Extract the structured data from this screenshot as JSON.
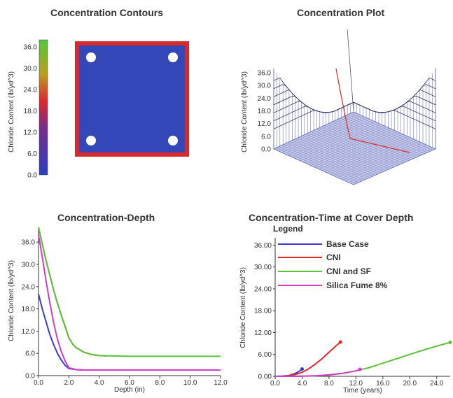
{
  "titles": {
    "contours": "Concentration Contours",
    "plot": "Concentration Plot",
    "depth": "Concentration-Depth",
    "time": "Concentration-Time at Cover Depth"
  },
  "colors": {
    "base_case": "#3a3ad0",
    "cni": "#e02828",
    "cni_sf": "#5cc23a",
    "silica_fume": "#d23ac8",
    "slab_fill": "#3447b8",
    "slab_border": "#d82a2a"
  },
  "chart_data": [
    {
      "type": "heatmap",
      "title": "Concentration Contours",
      "ylabel": "Chloride Content (lb/yd^3)",
      "colorbar": {
        "ticks": [
          "36.0",
          "30.0",
          "24.0",
          "18.0",
          "12.0",
          "6.0",
          "0.0"
        ],
        "range": [
          0,
          38
        ]
      }
    },
    {
      "type": "area",
      "title": "Concentration Plot",
      "ylabel": "Chloride Content (lb/yd^3)",
      "zticks": [
        "36.0",
        "30.0",
        "24.0",
        "18.0",
        "12.0",
        "6.0",
        "0.0"
      ],
      "zlim": [
        0,
        38
      ]
    },
    {
      "type": "line",
      "title": "Concentration-Depth",
      "xlabel": "Depth (in)",
      "ylabel": "Chloride Content (lb/yd^3)",
      "xlim": [
        0,
        12
      ],
      "ylim": [
        0,
        40
      ],
      "xticks": [
        "0.0",
        "2.0",
        "4.0",
        "6.0",
        "8.0",
        "10.0",
        "12.0"
      ],
      "yticks": [
        "0.0",
        "6.0",
        "12.0",
        "18.0",
        "24.0",
        "30.0",
        "36.0"
      ],
      "series": [
        {
          "key": "base_case",
          "x": [
            0,
            0.25,
            0.5,
            0.75,
            1.0,
            1.25,
            1.5,
            1.75,
            2.0,
            2.5,
            3.0,
            4.0,
            6.0,
            8.0,
            10.0,
            12.0
          ],
          "y": [
            22,
            18,
            14.5,
            11,
            8.3,
            6,
            4.2,
            2.8,
            1.9,
            1.6,
            1.5,
            1.5,
            1.5,
            1.5,
            1.5,
            1.5
          ]
        },
        {
          "key": "cni",
          "x": [
            0,
            0.25,
            0.5,
            0.75,
            1.0,
            1.25,
            1.5,
            1.75,
            2.0,
            2.25,
            2.5,
            3.0,
            3.5,
            4.0,
            4.5
          ],
          "y": [
            40,
            35.5,
            31,
            27,
            23,
            19.5,
            16.3,
            13.3,
            10.2,
            8.5,
            7.5,
            6.3,
            5.7,
            5.4,
            5.3
          ]
        },
        {
          "key": "cni_sf",
          "x": [
            0,
            0.25,
            0.5,
            0.75,
            1.0,
            1.25,
            1.5,
            1.75,
            2.0,
            2.25,
            2.5,
            3.0,
            3.5,
            4.0,
            5.0,
            6.0,
            8.0,
            10.0,
            12.0
          ],
          "y": [
            40,
            35.5,
            31,
            27,
            23,
            19.5,
            16.3,
            13.3,
            10.2,
            8.5,
            7.5,
            6.3,
            5.7,
            5.4,
            5.3,
            5.2,
            5.2,
            5.2,
            5.2
          ]
        },
        {
          "key": "silica_fume",
          "x": [
            0,
            0.25,
            0.5,
            0.75,
            1.0,
            1.25,
            1.5,
            1.75,
            2.0,
            2.5,
            3.0,
            4.0,
            6.0,
            8.0,
            10.0,
            12.0
          ],
          "y": [
            38,
            32,
            25.5,
            19.5,
            14.2,
            9.8,
            6.5,
            4.0,
            2.1,
            1.6,
            1.5,
            1.5,
            1.5,
            1.5,
            1.5,
            1.5
          ]
        }
      ]
    },
    {
      "type": "line",
      "title": "Concentration-Time at Cover Depth",
      "xlabel": "Time (years)",
      "ylabel": "Chloride Content (lb/yd^3)",
      "xlim": [
        0,
        26
      ],
      "ylim": [
        0,
        38
      ],
      "xticks": [
        "0.0",
        "4.0",
        "8.0",
        "12.0",
        "16.0",
        "20.0",
        "24.0"
      ],
      "yticks": [
        "0.00",
        "6.00",
        "12.00",
        "18.00",
        "24.00",
        "30.00",
        "36.00"
      ],
      "legend_title": "Legend",
      "legend": [
        "Base Case",
        "CNI",
        "CNI and SF",
        "Silica Fume  8%"
      ],
      "series": [
        {
          "key": "base_case",
          "x": [
            0,
            1,
            2,
            3,
            3.6,
            4.0
          ],
          "y": [
            0,
            0.05,
            0.2,
            0.8,
            1.4,
            2.0
          ]
        },
        {
          "key": "cni",
          "x": [
            0,
            1,
            2,
            3,
            4,
            5,
            6,
            7,
            8,
            9,
            9.7
          ],
          "y": [
            0,
            0.05,
            0.2,
            0.5,
            1.1,
            2.1,
            3.4,
            4.9,
            6.6,
            8.3,
            9.4
          ]
        },
        {
          "key": "cni_sf",
          "x": [
            0,
            2,
            4,
            6,
            8,
            10,
            12,
            14,
            16,
            18,
            20,
            22,
            24,
            26
          ],
          "y": [
            0,
            0,
            0.05,
            0.15,
            0.35,
            0.8,
            1.5,
            2.4,
            3.6,
            4.8,
            6.0,
            7.2,
            8.3,
            9.3
          ]
        },
        {
          "key": "silica_fume",
          "x": [
            0,
            2,
            4,
            6,
            8,
            10,
            12,
            12.6
          ],
          "y": [
            0,
            0,
            0.05,
            0.15,
            0.4,
            0.8,
            1.5,
            1.9
          ]
        }
      ]
    }
  ]
}
